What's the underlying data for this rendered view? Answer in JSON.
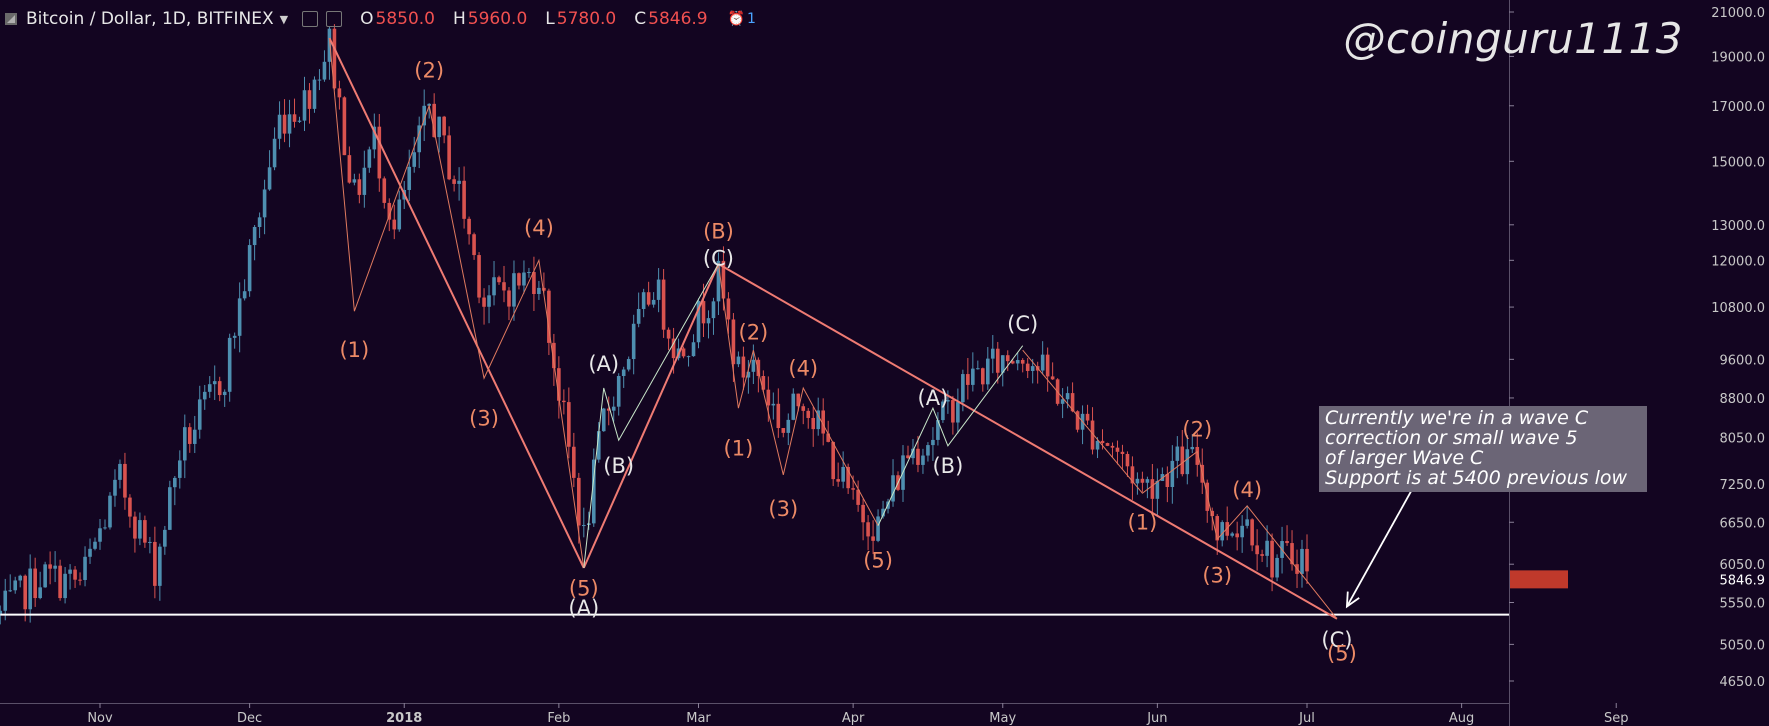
{
  "header": {
    "symbol": "Bitcoin / Dollar, 1D, BITFINEX",
    "open_label": "O",
    "open_value": "5850.0",
    "high_label": "H",
    "high_value": "5960.0",
    "low_label": "L",
    "low_value": "5780.0",
    "close_label": "C",
    "close_value": "5846.9",
    "alert_count": "1"
  },
  "watermark": "@coinguru1113",
  "note": {
    "lines": [
      "Currently we're in a wave C",
      "correction or small wave 5",
      "of larger Wave C",
      "Support is at 5400 previous low"
    ]
  },
  "colors": {
    "background": "#130521",
    "bull": "#4e8fb0",
    "bear": "#d9534f",
    "orange_label": "#ec8a66",
    "white_label": "#e8e8e8",
    "trend_line": "#ef7b73",
    "support_line": "#ffffff",
    "axis_text": "#c8c8c8",
    "last_price_bg": "#c0392b"
  },
  "chart_data": {
    "type": "candlestick",
    "title": "Bitcoin / Dollar, 1D, BITFINEX",
    "x_ticks": [
      "Nov",
      "Dec",
      "2018",
      "Feb",
      "Mar",
      "Apr",
      "May",
      "Jun",
      "Jul",
      "Aug",
      "Sep"
    ],
    "y_ticks": [
      "21000.0",
      "19000.0",
      "17000.0",
      "15000.0",
      "13000.0",
      "12000.0",
      "10800.0",
      "9600.0",
      "8800.0",
      "8050.0",
      "7250.0",
      "6650.0",
      "6050.0",
      "5550.0",
      "5050.0",
      "4650.0"
    ],
    "y_scale": "log",
    "last_price": "5846.9",
    "price_path": [
      {
        "date": "2017-10-12",
        "price": 5400
      },
      {
        "date": "2017-10-20",
        "price": 5900
      },
      {
        "date": "2017-10-28",
        "price": 5800
      },
      {
        "date": "2017-11-05",
        "price": 7300
      },
      {
        "date": "2017-11-12",
        "price": 6000
      },
      {
        "date": "2017-11-17",
        "price": 7800
      },
      {
        "date": "2017-11-26",
        "price": 9300
      },
      {
        "date": "2017-12-07",
        "price": 16500
      },
      {
        "date": "2017-12-12",
        "price": 17200
      },
      {
        "date": "2017-12-17",
        "price": 19600
      },
      {
        "date": "2017-12-22",
        "price": 13800
      },
      {
        "date": "2017-12-26",
        "price": 15800
      },
      {
        "date": "2017-12-30",
        "price": 12800
      },
      {
        "date": "2018-01-06",
        "price": 17000
      },
      {
        "date": "2018-01-12",
        "price": 14000
      },
      {
        "date": "2018-01-17",
        "price": 11000
      },
      {
        "date": "2018-01-22",
        "price": 11300
      },
      {
        "date": "2018-01-28",
        "price": 11700
      },
      {
        "date": "2018-02-06",
        "price": 6400
      },
      {
        "date": "2018-02-10",
        "price": 8400
      },
      {
        "date": "2018-02-20",
        "price": 11400
      },
      {
        "date": "2018-02-25",
        "price": 9700
      },
      {
        "date": "2018-03-05",
        "price": 11500
      },
      {
        "date": "2018-03-09",
        "price": 9300
      },
      {
        "date": "2018-03-12",
        "price": 9500
      },
      {
        "date": "2018-03-18",
        "price": 8200
      },
      {
        "date": "2018-03-22",
        "price": 8900
      },
      {
        "date": "2018-04-01",
        "price": 6900
      },
      {
        "date": "2018-04-06",
        "price": 6600
      },
      {
        "date": "2018-04-12",
        "price": 7800
      },
      {
        "date": "2018-04-17",
        "price": 8100
      },
      {
        "date": "2018-04-24",
        "price": 9200
      },
      {
        "date": "2018-05-05",
        "price": 9800
      },
      {
        "date": "2018-05-10",
        "price": 9200
      },
      {
        "date": "2018-05-17",
        "price": 8300
      },
      {
        "date": "2018-05-23",
        "price": 7900
      },
      {
        "date": "2018-05-29",
        "price": 7200
      },
      {
        "date": "2018-06-05",
        "price": 7600
      },
      {
        "date": "2018-06-09",
        "price": 7650
      },
      {
        "date": "2018-06-13",
        "price": 6500
      },
      {
        "date": "2018-06-19",
        "price": 6700
      },
      {
        "date": "2018-06-24",
        "price": 6100
      },
      {
        "date": "2018-06-30",
        "price": 6200
      },
      {
        "date": "2018-07-01",
        "price": 5846.9
      }
    ],
    "trend_lines": [
      {
        "from": {
          "date": "2017-12-17",
          "price": 19800
        },
        "to": {
          "date": "2018-02-06",
          "price": 6000
        }
      },
      {
        "from": {
          "date": "2018-02-06",
          "price": 6000
        },
        "to": {
          "date": "2018-03-05",
          "price": 11900
        }
      },
      {
        "from": {
          "date": "2018-03-05",
          "price": 11900
        },
        "to": {
          "date": "2018-07-07",
          "price": 5350
        }
      }
    ],
    "wave_lines": [
      [
        {
          "date": "2017-12-17",
          "price": 19800
        },
        {
          "date": "2017-12-22",
          "price": 10700
        },
        {
          "date": "2018-01-06",
          "price": 17000
        },
        {
          "date": "2018-01-17",
          "price": 9200
        },
        {
          "date": "2018-01-28",
          "price": 12000
        },
        {
          "date": "2018-02-06",
          "price": 6000
        }
      ],
      [
        {
          "date": "2018-03-05",
          "price": 11900
        },
        {
          "date": "2018-03-09",
          "price": 8600
        },
        {
          "date": "2018-03-12",
          "price": 9800
        },
        {
          "date": "2018-03-18",
          "price": 7400
        },
        {
          "date": "2018-03-22",
          "price": 9000
        },
        {
          "date": "2018-04-06",
          "price": 6600
        }
      ],
      [
        {
          "date": "2018-05-05",
          "price": 9800
        },
        {
          "date": "2018-05-29",
          "price": 7100
        },
        {
          "date": "2018-06-09",
          "price": 7800
        },
        {
          "date": "2018-06-13",
          "price": 6400
        },
        {
          "date": "2018-06-19",
          "price": 6900
        },
        {
          "date": "2018-07-07",
          "price": 5350
        }
      ]
    ],
    "correction_lines": [
      [
        {
          "date": "2018-02-06",
          "price": 6000
        },
        {
          "date": "2018-02-10",
          "price": 9000
        },
        {
          "date": "2018-02-13",
          "price": 8000
        },
        {
          "date": "2018-03-05",
          "price": 11900
        }
      ],
      [
        {
          "date": "2018-04-06",
          "price": 6600
        },
        {
          "date": "2018-04-17",
          "price": 8600
        },
        {
          "date": "2018-04-20",
          "price": 7900
        },
        {
          "date": "2018-05-05",
          "price": 9900
        }
      ]
    ],
    "support_line": {
      "price": 5400,
      "from": "2017-10-12",
      "to": "2018-08-31"
    },
    "arrow": {
      "from": {
        "date": "2018-07-22",
        "price": 7150
      },
      "to": {
        "date": "2018-07-09",
        "price": 5500
      }
    },
    "wave_labels": [
      {
        "text": "(1)",
        "date": "2017-12-22",
        "price": 9800,
        "color": "orange"
      },
      {
        "text": "(2)",
        "date": "2018-01-06",
        "price": 18400,
        "color": "orange"
      },
      {
        "text": "(3)",
        "date": "2018-01-17",
        "price": 8400,
        "color": "orange"
      },
      {
        "text": "(4)",
        "date": "2018-01-28",
        "price": 12900,
        "color": "orange"
      },
      {
        "text": "(5)",
        "date": "2018-02-06",
        "price": 5730,
        "color": "orange"
      },
      {
        "text": "(A)",
        "date": "2018-02-06",
        "price": 5480,
        "color": "white"
      },
      {
        "text": "(A)",
        "date": "2018-02-10",
        "price": 9500,
        "color": "white"
      },
      {
        "text": "(B)",
        "date": "2018-02-13",
        "price": 7550,
        "color": "white"
      },
      {
        "text": "(B)",
        "date": "2018-03-05",
        "price": 12800,
        "color": "orange"
      },
      {
        "text": "(C)",
        "date": "2018-03-05",
        "price": 12050,
        "color": "white"
      },
      {
        "text": "(2)",
        "date": "2018-03-12",
        "price": 10200,
        "color": "orange"
      },
      {
        "text": "(1)",
        "date": "2018-03-09",
        "price": 7850,
        "color": "orange"
      },
      {
        "text": "(3)",
        "date": "2018-03-18",
        "price": 6850,
        "color": "orange"
      },
      {
        "text": "(4)",
        "date": "2018-03-22",
        "price": 9400,
        "color": "orange"
      },
      {
        "text": "(5)",
        "date": "2018-04-06",
        "price": 6100,
        "color": "orange"
      },
      {
        "text": "(A)",
        "date": "2018-04-17",
        "price": 8800,
        "color": "white"
      },
      {
        "text": "(B)",
        "date": "2018-04-20",
        "price": 7550,
        "color": "white"
      },
      {
        "text": "(C)",
        "date": "2018-05-05",
        "price": 10400,
        "color": "white"
      },
      {
        "text": "(1)",
        "date": "2018-05-29",
        "price": 6650,
        "color": "orange"
      },
      {
        "text": "(2)",
        "date": "2018-06-09",
        "price": 8200,
        "color": "orange"
      },
      {
        "text": "(3)",
        "date": "2018-06-13",
        "price": 5900,
        "color": "orange"
      },
      {
        "text": "(4)",
        "date": "2018-06-19",
        "price": 7150,
        "color": "orange"
      },
      {
        "text": "(C)",
        "date": "2018-07-07",
        "price": 5100,
        "color": "white"
      },
      {
        "text": "(5)",
        "date": "2018-07-08",
        "price": 4950,
        "color": "orange"
      }
    ]
  }
}
